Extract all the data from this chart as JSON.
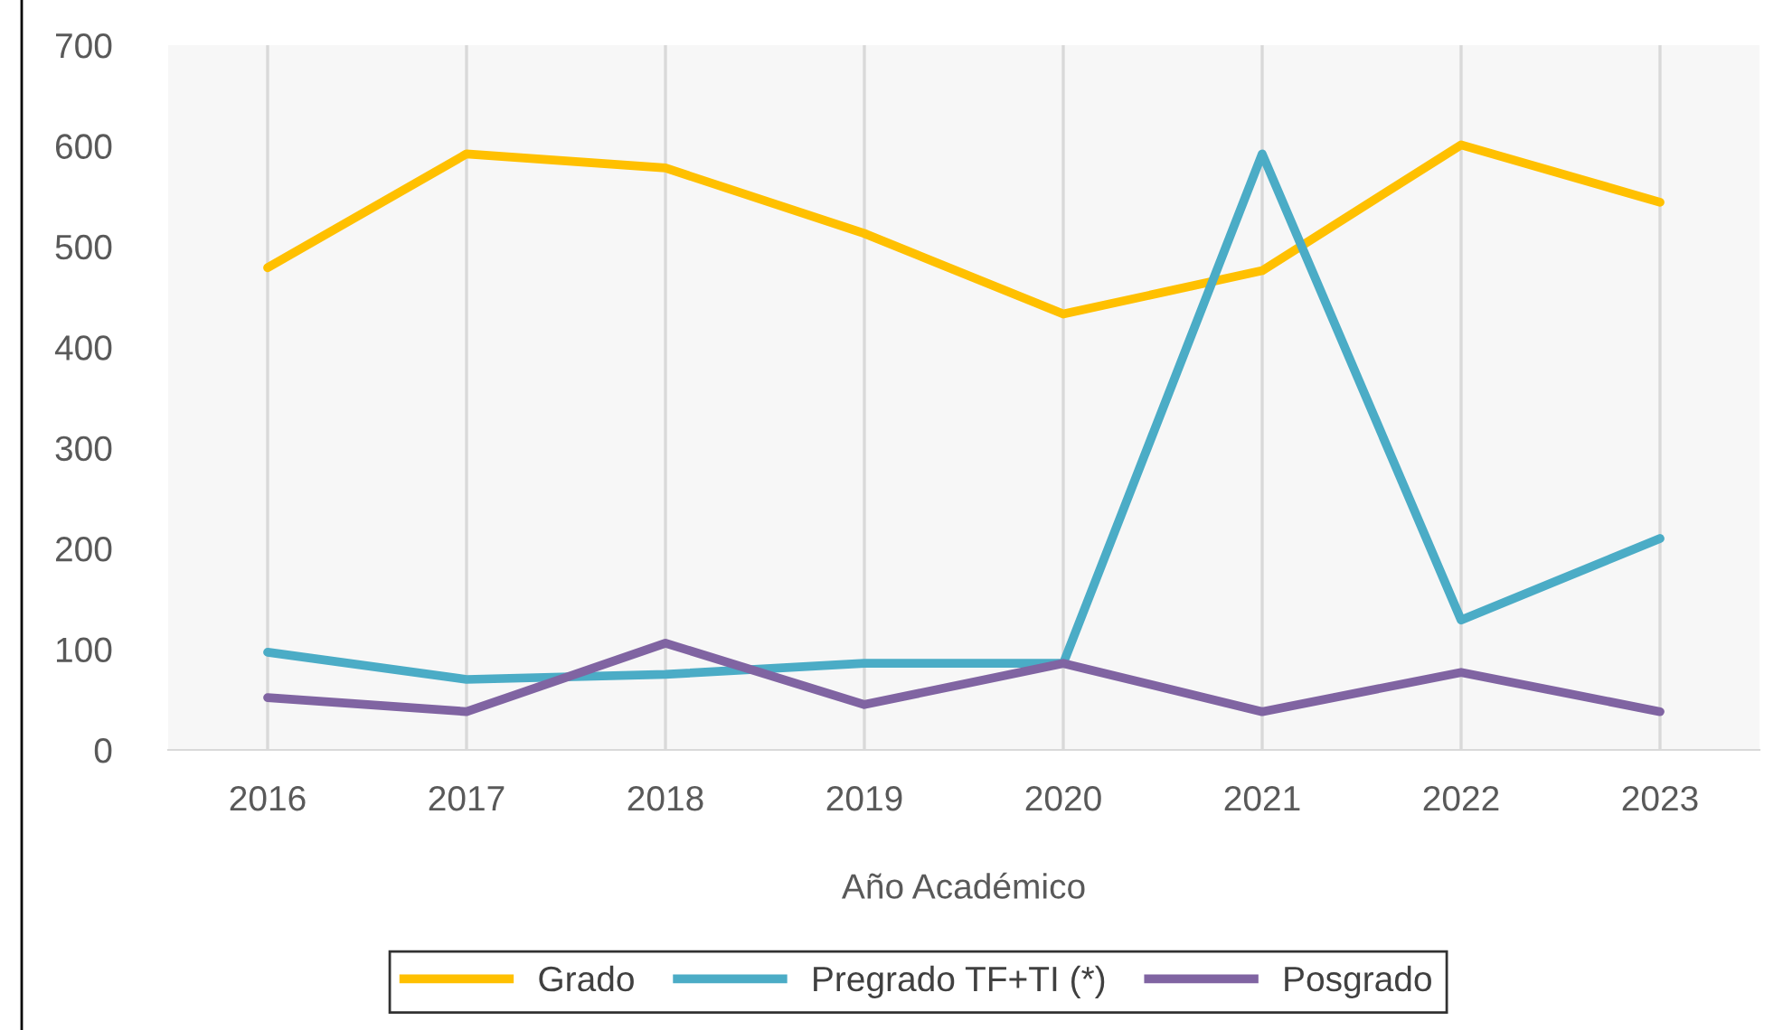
{
  "chart_data": {
    "type": "line",
    "xlabel": "Año Académico",
    "categories": [
      "2016",
      "2017",
      "2018",
      "2019",
      "2020",
      "2021",
      "2022",
      "2023"
    ],
    "series": [
      {
        "name": "Grado",
        "color": "#ffc000",
        "values": [
          479,
          592,
          578,
          513,
          433,
          476,
          601,
          544
        ]
      },
      {
        "name": "Pregrado TF+TI (*)",
        "color": "#4bacc6",
        "values": [
          97,
          70,
          75,
          86,
          86,
          592,
          129,
          210
        ]
      },
      {
        "name": "Posgrado",
        "color": "#8064a2",
        "values": [
          52,
          38,
          106,
          45,
          86,
          38,
          77,
          38
        ]
      }
    ],
    "ylim": [
      0,
      700
    ],
    "yticks": [
      0,
      100,
      200,
      300,
      400,
      500,
      600,
      700
    ],
    "grid": "x",
    "legend": "bottom",
    "marker": "none",
    "line_style": "solid"
  }
}
